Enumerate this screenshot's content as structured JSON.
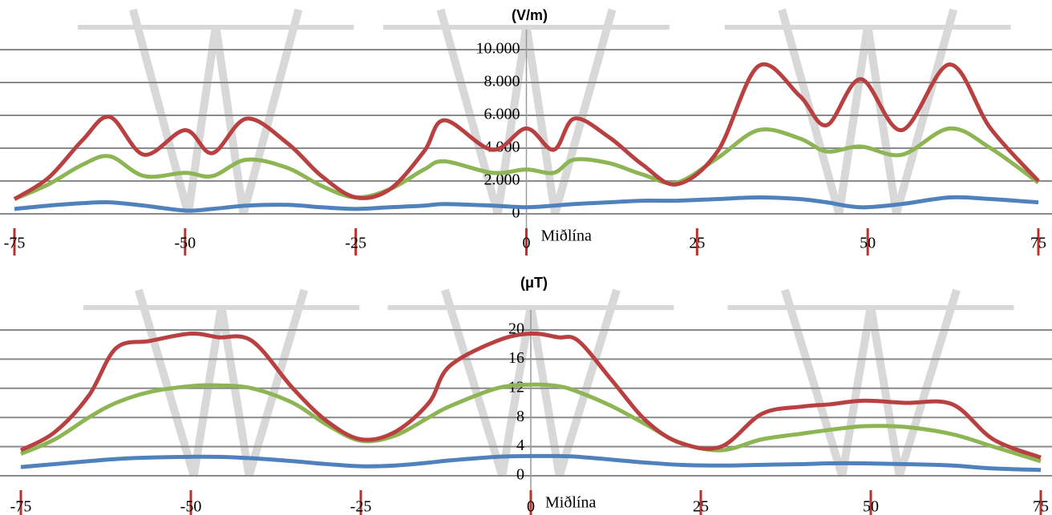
{
  "chart_data": [
    {
      "type": "line",
      "title": "(V/m)",
      "annotation": "Miðlína",
      "grid": true,
      "xlim": [
        -75,
        75
      ],
      "xticks": [
        -75,
        -50,
        -25,
        0,
        25,
        50,
        75
      ],
      "ylim": [
        0,
        10000
      ],
      "yticks": [
        0,
        {
          "value": 2000,
          "label": "2.000"
        },
        {
          "value": 4000,
          "label": "4.000"
        },
        {
          "value": 6000,
          "label": "6.000"
        },
        {
          "value": 8000,
          "label": "8.000"
        },
        {
          "value": 10000,
          "label": "10.000"
        }
      ],
      "x": [
        -75,
        -70,
        -65,
        -61,
        -56,
        -50,
        -46,
        -41,
        -35,
        -30,
        -25,
        -20,
        -15,
        -12,
        -5,
        0,
        4,
        7,
        12,
        17,
        22,
        28,
        34,
        40,
        44,
        49,
        55,
        62,
        68,
        75
      ],
      "series": [
        {
          "color": "#4f81bd",
          "values": [
            300,
            500,
            650,
            700,
            500,
            200,
            300,
            500,
            550,
            400,
            300,
            400,
            500,
            600,
            500,
            400,
            500,
            600,
            700,
            800,
            800,
            900,
            1000,
            900,
            700,
            400,
            600,
            1000,
            900,
            700
          ]
        },
        {
          "color": "#8db553",
          "values": [
            900,
            1800,
            3000,
            3500,
            2300,
            2500,
            2300,
            3300,
            2800,
            1700,
            1000,
            1500,
            2700,
            3200,
            2500,
            2700,
            2500,
            3300,
            3100,
            2400,
            1900,
            3400,
            5100,
            4600,
            3800,
            4100,
            3600,
            5200,
            4000,
            1900
          ]
        },
        {
          "color": "#b84040",
          "values": [
            900,
            2200,
            4500,
            5900,
            3600,
            5100,
            3700,
            5800,
            4300,
            2300,
            1000,
            1500,
            3800,
            5700,
            3900,
            5200,
            3900,
            5800,
            4700,
            3000,
            1800,
            3800,
            9000,
            7200,
            5400,
            8200,
            5100,
            9100,
            5200,
            2000
          ]
        }
      ]
    },
    {
      "type": "line",
      "title": "(μT)",
      "annotation": "Miðlína",
      "grid": true,
      "xlim": [
        -75,
        75
      ],
      "xticks": [
        -75,
        -50,
        -25,
        0,
        25,
        50,
        75
      ],
      "ylim": [
        0,
        20
      ],
      "yticks": [
        0,
        4,
        8,
        12,
        16,
        20
      ],
      "x": [
        -75,
        -70,
        -65,
        -61,
        -56,
        -50,
        -46,
        -41,
        -35,
        -30,
        -25,
        -20,
        -15,
        -12,
        -5,
        0,
        4,
        7,
        12,
        17,
        22,
        28,
        34,
        40,
        44,
        49,
        55,
        62,
        68,
        75
      ],
      "series": [
        {
          "color": "#4f81bd",
          "values": [
            1.2,
            1.6,
            2,
            2.3,
            2.5,
            2.6,
            2.6,
            2.4,
            2,
            1.6,
            1.3,
            1.4,
            1.8,
            2.1,
            2.6,
            2.7,
            2.7,
            2.6,
            2.2,
            1.8,
            1.5,
            1.4,
            1.5,
            1.6,
            1.7,
            1.7,
            1.6,
            1.4,
            1.0,
            0.8
          ]
        },
        {
          "color": "#8db553",
          "values": [
            3,
            5,
            8,
            10,
            11.5,
            12.3,
            12.4,
            12,
            10,
            7,
            4.8,
            5.5,
            8,
            9.5,
            12,
            12.5,
            12.3,
            11.5,
            9.5,
            7,
            4.5,
            3.5,
            5,
            5.8,
            6.3,
            6.8,
            6.7,
            5.7,
            4,
            2
          ]
        },
        {
          "color": "#b84040",
          "values": [
            3.5,
            6,
            11,
            17.5,
            18.5,
            19.5,
            19,
            18.5,
            12,
            7.5,
            5,
            6,
            10,
            15,
            18.5,
            19.5,
            19,
            18.5,
            13,
            7.5,
            4.5,
            4,
            8.5,
            9.5,
            9.8,
            10.3,
            10,
            9.8,
            5,
            2.5
          ]
        }
      ]
    }
  ]
}
